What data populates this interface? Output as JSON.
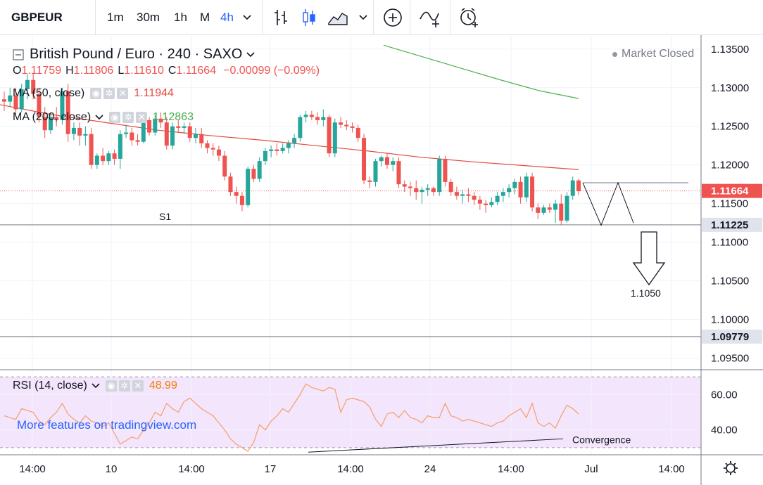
{
  "toolbar": {
    "symbol": "GBPEUR",
    "intervals": [
      "1m",
      "30m",
      "1h",
      "M",
      "4h"
    ],
    "active_interval": "4h",
    "icons": [
      "bar-style-icon",
      "candles-icon",
      "area-style-icon",
      "chevron-down-icon",
      "compare-add-icon",
      "indicators-icon",
      "alert-icon"
    ]
  },
  "legend": {
    "title": "British Pound / Euro · 240 · SAXO",
    "market_status": "Market Closed",
    "ohlc": {
      "o_label": "O",
      "o": "1.11759",
      "h_label": "H",
      "h": "1.11806",
      "l_label": "L",
      "l": "1.11610",
      "c_label": "C",
      "c": "1.11664",
      "change": "−0.00099 (−0.09%)"
    },
    "ma50": {
      "label": "MA (50, close)",
      "value": "1.11944"
    },
    "ma200": {
      "label": "MA (200, close)",
      "value": "1.12863"
    },
    "rsi": {
      "label": "RSI (14, close)",
      "value": "48.99"
    }
  },
  "annotations": {
    "s1_label": "S1",
    "target_label": "1.1050",
    "convergence_label": "Convergence",
    "watermark": "More features on tradingview.com"
  },
  "price_labels": {
    "last": "1.11664",
    "s1": "1.11225",
    "lower": "1.09779"
  },
  "colors": {
    "up": "#26a69a",
    "down": "#ef5350",
    "ma50": "#e34a3f",
    "ma200": "#4caf50",
    "rsi_line": "#f7a172",
    "rsi_band": "#f3e6fc",
    "accent": "#2962ff"
  },
  "chart_data": [
    {
      "type": "candlestick",
      "title": "British Pound / Euro · 240 · SAXO",
      "y_ticks": [
        1.095,
        1.1,
        1.105,
        1.11,
        1.115,
        1.12,
        1.125,
        1.13,
        1.135
      ],
      "y_tick_labels": [
        "1.09500",
        "1.10000",
        "1.10500",
        "1.11000",
        "1.11500",
        "1.12000",
        "1.12500",
        "1.13000",
        "1.13500"
      ],
      "ylim": [
        1.0935,
        1.1368
      ],
      "x_tick_labels": [
        "14:00",
        "10",
        "14:00",
        "17",
        "14:00",
        "24",
        "14:00",
        "Jul",
        "14:00"
      ],
      "horizontal_levels": [
        1.11664,
        1.11225,
        1.09779
      ],
      "candles": [
        [
          1.1285,
          1.1295,
          1.127,
          1.1282
        ],
        [
          1.1282,
          1.13,
          1.1275,
          1.129
        ],
        [
          1.129,
          1.13,
          1.1265,
          1.1272
        ],
        [
          1.1272,
          1.1305,
          1.1268,
          1.1298
        ],
        [
          1.1298,
          1.1318,
          1.1285,
          1.131
        ],
        [
          1.131,
          1.1318,
          1.1285,
          1.1292
        ],
        [
          1.1292,
          1.13,
          1.1255,
          1.1262
        ],
        [
          1.1262,
          1.1275,
          1.1235,
          1.1245
        ],
        [
          1.1245,
          1.1268,
          1.124,
          1.1262
        ],
        [
          1.1262,
          1.1275,
          1.125,
          1.1258
        ],
        [
          1.1258,
          1.13,
          1.1252,
          1.1295
        ],
        [
          1.1295,
          1.1305,
          1.123,
          1.124
        ],
        [
          1.124,
          1.1255,
          1.1232,
          1.1248
        ],
        [
          1.1248,
          1.1255,
          1.1225,
          1.1238
        ],
        [
          1.1238,
          1.125,
          1.1225,
          1.124
        ],
        [
          1.124,
          1.1248,
          1.1195,
          1.12
        ],
        [
          1.12,
          1.1215,
          1.1195,
          1.1212
        ],
        [
          1.1212,
          1.1222,
          1.12,
          1.1205
        ],
        [
          1.1205,
          1.1218,
          1.12,
          1.1215
        ],
        [
          1.1215,
          1.122,
          1.12,
          1.1208
        ],
        [
          1.1208,
          1.1245,
          1.1195,
          1.124
        ],
        [
          1.124,
          1.1252,
          1.1235,
          1.1242
        ],
        [
          1.1242,
          1.1248,
          1.1225,
          1.1232
        ],
        [
          1.1232,
          1.124,
          1.1225,
          1.123
        ],
        [
          1.123,
          1.1262,
          1.1228,
          1.1258
        ],
        [
          1.1258,
          1.1262,
          1.1238,
          1.1242
        ],
        [
          1.1242,
          1.1265,
          1.1238,
          1.126
        ],
        [
          1.126,
          1.1268,
          1.1248,
          1.1255
        ],
        [
          1.1255,
          1.1262,
          1.122,
          1.1225
        ],
        [
          1.1225,
          1.1255,
          1.122,
          1.125
        ],
        [
          1.125,
          1.1258,
          1.1242,
          1.1248
        ],
        [
          1.1248,
          1.1255,
          1.124,
          1.125
        ],
        [
          1.125,
          1.1255,
          1.123,
          1.1235
        ],
        [
          1.1235,
          1.1248,
          1.1228,
          1.124
        ],
        [
          1.124,
          1.1248,
          1.1222,
          1.1228
        ],
        [
          1.1228,
          1.1232,
          1.1215,
          1.1222
        ],
        [
          1.1222,
          1.1228,
          1.1212,
          1.122
        ],
        [
          1.122,
          1.1225,
          1.1205,
          1.1212
        ],
        [
          1.1212,
          1.1218,
          1.118,
          1.1185
        ],
        [
          1.1185,
          1.119,
          1.116,
          1.1165
        ],
        [
          1.1165,
          1.1172,
          1.115,
          1.116
        ],
        [
          1.116,
          1.1165,
          1.114,
          1.1148
        ],
        [
          1.1148,
          1.1198,
          1.1145,
          1.1195
        ],
        [
          1.1195,
          1.12,
          1.1178,
          1.1182
        ],
        [
          1.1182,
          1.121,
          1.1178,
          1.1205
        ],
        [
          1.1205,
          1.1222,
          1.12,
          1.1218
        ],
        [
          1.1218,
          1.1225,
          1.121,
          1.122
        ],
        [
          1.122,
          1.1228,
          1.1212,
          1.1218
        ],
        [
          1.1218,
          1.1228,
          1.1215,
          1.1222
        ],
        [
          1.1222,
          1.1232,
          1.1215,
          1.1228
        ],
        [
          1.1228,
          1.124,
          1.1222,
          1.1235
        ],
        [
          1.1235,
          1.1265,
          1.123,
          1.1262
        ],
        [
          1.1262,
          1.127,
          1.1255,
          1.1265
        ],
        [
          1.1265,
          1.127,
          1.1258,
          1.1262
        ],
        [
          1.1262,
          1.1268,
          1.1252,
          1.1258
        ],
        [
          1.1258,
          1.1272,
          1.125,
          1.1262
        ],
        [
          1.1262,
          1.1265,
          1.121,
          1.1215
        ],
        [
          1.1215,
          1.126,
          1.121,
          1.1255
        ],
        [
          1.1255,
          1.1262,
          1.1248,
          1.1252
        ],
        [
          1.1252,
          1.1258,
          1.1245,
          1.125
        ],
        [
          1.125,
          1.1255,
          1.1242,
          1.1248
        ],
        [
          1.1248,
          1.1252,
          1.123,
          1.1235
        ],
        [
          1.1235,
          1.124,
          1.1175,
          1.118
        ],
        [
          1.118,
          1.1185,
          1.117,
          1.1178
        ],
        [
          1.1178,
          1.1208,
          1.1172,
          1.1205
        ],
        [
          1.1205,
          1.1212,
          1.1198,
          1.121
        ],
        [
          1.121,
          1.1215,
          1.1195,
          1.12
        ],
        [
          1.12,
          1.121,
          1.1192,
          1.1205
        ],
        [
          1.1205,
          1.121,
          1.117,
          1.1175
        ],
        [
          1.1175,
          1.118,
          1.1165,
          1.1172
        ],
        [
          1.1172,
          1.1178,
          1.116,
          1.117
        ],
        [
          1.117,
          1.118,
          1.1155,
          1.1165
        ],
        [
          1.1165,
          1.1172,
          1.115,
          1.1168
        ],
        [
          1.1168,
          1.1175,
          1.116,
          1.117
        ],
        [
          1.117,
          1.1172,
          1.116,
          1.1165
        ],
        [
          1.1165,
          1.1212,
          1.116,
          1.1208
        ],
        [
          1.1208,
          1.1212,
          1.1172,
          1.1178
        ],
        [
          1.1178,
          1.1182,
          1.116,
          1.1165
        ],
        [
          1.1165,
          1.1172,
          1.1155,
          1.116
        ],
        [
          1.116,
          1.1168,
          1.115,
          1.1162
        ],
        [
          1.1162,
          1.117,
          1.1152,
          1.116
        ],
        [
          1.116,
          1.1165,
          1.1148,
          1.1155
        ],
        [
          1.1155,
          1.116,
          1.1142,
          1.115
        ],
        [
          1.115,
          1.1155,
          1.1138,
          1.1148
        ],
        [
          1.1148,
          1.1158,
          1.1145,
          1.1152
        ],
        [
          1.1152,
          1.1165,
          1.1148,
          1.116
        ],
        [
          1.116,
          1.117,
          1.1152,
          1.1165
        ],
        [
          1.1165,
          1.1175,
          1.1158,
          1.117
        ],
        [
          1.117,
          1.1182,
          1.1162,
          1.1178
        ],
        [
          1.1178,
          1.1185,
          1.115,
          1.1158
        ],
        [
          1.1158,
          1.119,
          1.1152,
          1.1185
        ],
        [
          1.1185,
          1.119,
          1.114,
          1.1145
        ],
        [
          1.1145,
          1.115,
          1.113,
          1.1138
        ],
        [
          1.1138,
          1.1148,
          1.1135,
          1.1145
        ],
        [
          1.1145,
          1.115,
          1.1138,
          1.1142
        ],
        [
          1.1142,
          1.1155,
          1.1125,
          1.115
        ],
        [
          1.115,
          1.1162,
          1.1122,
          1.1128
        ],
        [
          1.1128,
          1.1165,
          1.1125,
          1.116
        ],
        [
          1.116,
          1.1185,
          1.1155,
          1.118
        ],
        [
          1.118,
          1.1182,
          1.1161,
          1.1166
        ]
      ],
      "ma50_path": [
        1.1278,
        1.1265,
        1.1255,
        1.1245,
        1.1238,
        1.1232,
        1.1225,
        1.1218,
        1.121,
        1.1204,
        1.1199,
        1.1194
      ],
      "ma200_path": [
        1.1355,
        1.134,
        1.1325,
        1.131,
        1.1296,
        1.1286
      ]
    },
    {
      "type": "line",
      "title": "RSI (14, close)",
      "ylim": [
        26,
        74
      ],
      "y_ticks": [
        40,
        60
      ],
      "y_tick_labels": [
        "40.00",
        "60.00"
      ],
      "band": [
        30,
        70
      ],
      "values": [
        48,
        47,
        46,
        52,
        51,
        50,
        45,
        43,
        47,
        50,
        55,
        49,
        46,
        44,
        48,
        45,
        44,
        42,
        44,
        38,
        32,
        34,
        36,
        35,
        40,
        44,
        50,
        48,
        55,
        52,
        50,
        56,
        58,
        55,
        52,
        50,
        48,
        44,
        40,
        35,
        32,
        30,
        28,
        33,
        43,
        40,
        45,
        48,
        52,
        50,
        55,
        60,
        66,
        64,
        63,
        62,
        64,
        63,
        50,
        57,
        58,
        57,
        56,
        53,
        46,
        42,
        49,
        50,
        47,
        51,
        47,
        46,
        44,
        48,
        47,
        47,
        55,
        48,
        47,
        45,
        46,
        45,
        44,
        43,
        42,
        44,
        45,
        48,
        50,
        52,
        47,
        55,
        44,
        42,
        44,
        41,
        48,
        54,
        52,
        49
      ]
    }
  ]
}
